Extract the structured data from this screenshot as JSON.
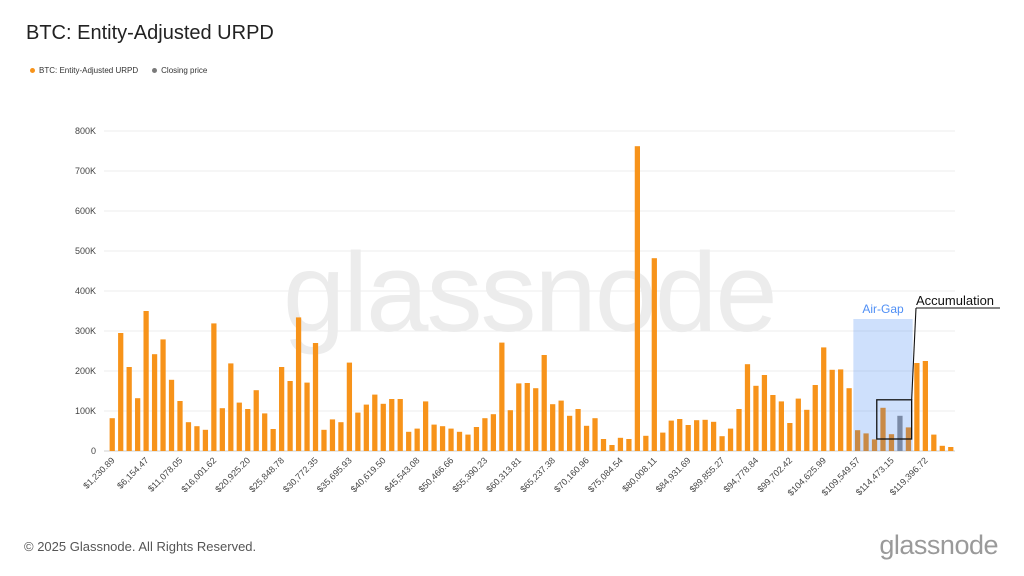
{
  "title": "BTC: Entity-Adjusted URPD",
  "legend": [
    {
      "label": "BTC: Entity-Adjusted URPD",
      "color": "#f7931a"
    },
    {
      "label": "Closing price",
      "color": "#7a7a7a"
    }
  ],
  "watermark": "glassnode",
  "footer": "© 2025 Glassnode. All Rights Reserved.",
  "logo": "glassnode",
  "chart_data": {
    "type": "bar",
    "title": "BTC: Entity-Adjusted URPD",
    "xlabel": "",
    "ylabel": "",
    "ylim": [
      0,
      800000
    ],
    "y_ticks": [
      "0",
      "100K",
      "200K",
      "300K",
      "400K",
      "500K",
      "600K",
      "700K",
      "800K"
    ],
    "x_tick_labels": [
      "$1,230.89",
      "$6,154.47",
      "$11,078.05",
      "$16,001.62",
      "$20,925.20",
      "$25,848.78",
      "$30,772.35",
      "$35,695.93",
      "$40,619.50",
      "$45,543.08",
      "$50,466.66",
      "$55,390.23",
      "$60,313.81",
      "$65,237.38",
      "$70,160.96",
      "$75,084.54",
      "$80,008.11",
      "$84,931.69",
      "$89,855.27",
      "$94,778.84",
      "$99,702.42",
      "$104,625.99",
      "$109,549.57",
      "$114,473.15",
      "$119,396.72"
    ],
    "values": [
      82000,
      295000,
      210000,
      132000,
      350000,
      242000,
      279000,
      178000,
      125000,
      72000,
      62000,
      53000,
      319000,
      107000,
      219000,
      121000,
      105000,
      152000,
      94000,
      55000,
      210000,
      175000,
      334000,
      171000,
      270000,
      53000,
      79000,
      72000,
      221000,
      96000,
      116000,
      141000,
      118000,
      130000,
      130000,
      48000,
      56000,
      124000,
      66000,
      62000,
      56000,
      48000,
      41000,
      60000,
      82000,
      92000,
      271000,
      102000,
      169000,
      170000,
      157000,
      240000,
      117000,
      126000,
      88000,
      105000,
      63000,
      82000,
      30000,
      15000,
      33000,
      30000,
      762000,
      38000,
      482000,
      46000,
      76000,
      80000,
      65000,
      77000,
      78000,
      73000,
      37000,
      56000,
      105000,
      217000,
      163000,
      190000,
      140000,
      124000,
      70000,
      131000,
      103000,
      165000,
      259000,
      203000,
      204000,
      157000,
      52000,
      44000,
      29000,
      108000,
      42000,
      88000,
      59000,
      220000,
      225000,
      41000,
      13000,
      10000
    ],
    "closing_price_index": 93,
    "annotations": [
      {
        "text": "Air-Gap",
        "type": "shaded-region",
        "from_index": 88,
        "to_index": 94,
        "color": "#4f8ff5"
      },
      {
        "text": "Accumulation",
        "type": "box",
        "from_index": 91,
        "to_index": 94
      }
    ],
    "grid": true,
    "legend_position": "top-left"
  }
}
